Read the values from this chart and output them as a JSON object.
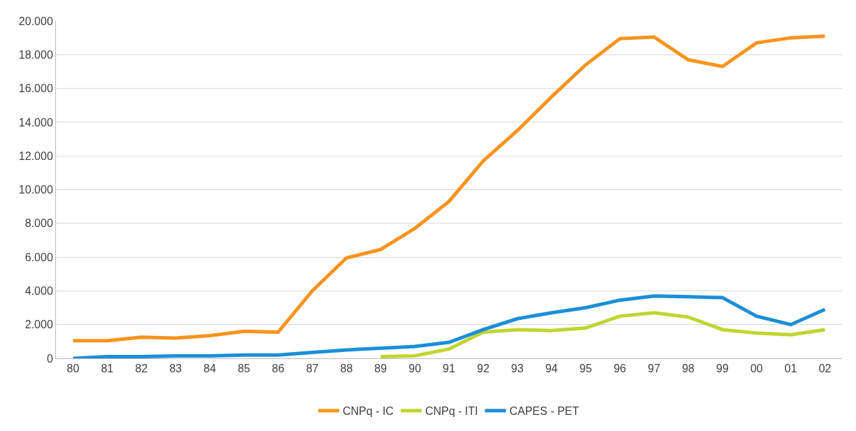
{
  "chart_data": {
    "type": "line",
    "categories": [
      "80",
      "81",
      "82",
      "83",
      "84",
      "85",
      "86",
      "87",
      "88",
      "89",
      "90",
      "91",
      "92",
      "93",
      "94",
      "95",
      "96",
      "97",
      "98",
      "99",
      "00",
      "01",
      "02"
    ],
    "series": [
      {
        "name": "CNPq - IC",
        "color": "#f7941d",
        "values": [
          1050,
          1050,
          1250,
          1200,
          1350,
          1600,
          1550,
          4000,
          5950,
          6450,
          7700,
          9300,
          11700,
          13500,
          15500,
          17400,
          18950,
          19050,
          17700,
          17300,
          18700,
          19000,
          19100
        ]
      },
      {
        "name": "CNPq - ITI",
        "color": "#bfd630",
        "values": [
          null,
          null,
          null,
          null,
          null,
          null,
          null,
          null,
          null,
          100,
          150,
          550,
          1550,
          1700,
          1650,
          1800,
          2500,
          2700,
          2450,
          1700,
          1500,
          1400,
          1700
        ]
      },
      {
        "name": "CAPES - PET",
        "color": "#1b8fd8",
        "values": [
          0,
          100,
          100,
          150,
          150,
          200,
          200,
          350,
          500,
          600,
          700,
          950,
          1700,
          2350,
          2700,
          3000,
          3450,
          3700,
          3650,
          3600,
          2500,
          2000,
          2900
        ]
      }
    ],
    "ylim": [
      0,
      20000
    ],
    "yticks": [
      0,
      {
        "value": 2000,
        "label": "2.000"
      },
      {
        "value": 4000,
        "label": "4.000"
      },
      {
        "value": 6000,
        "label": "6.000"
      },
      {
        "value": 8000,
        "label": "8.000"
      },
      {
        "value": 10000,
        "label": "10.000"
      },
      {
        "value": 12000,
        "label": "12.000"
      },
      {
        "value": 14000,
        "label": "14.000"
      },
      {
        "value": 16000,
        "label": "16.000"
      },
      {
        "value": 18000,
        "label": "18.000"
      },
      {
        "value": 20000,
        "label": "20.000"
      }
    ],
    "grid": "y",
    "legend": "bottom",
    "marker": "none",
    "line_style": "solid"
  }
}
